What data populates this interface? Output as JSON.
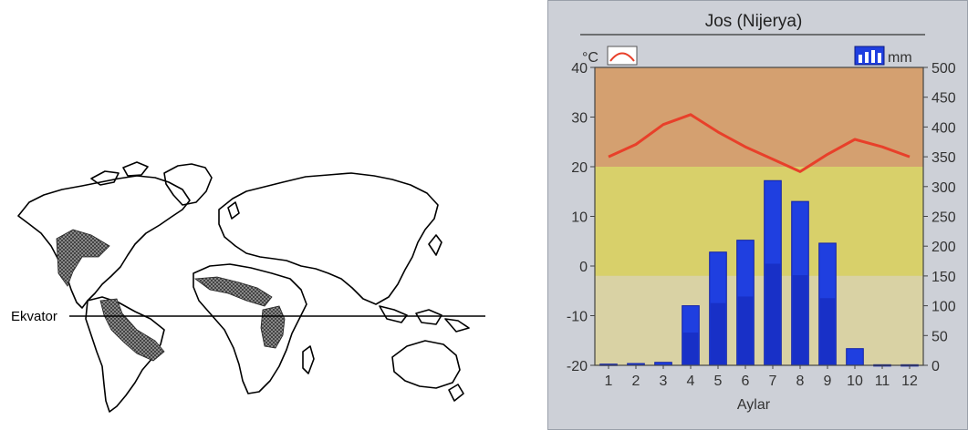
{
  "map": {
    "equator_label": "Ekvator"
  },
  "chart_data": {
    "type": "bar+line",
    "title": "Jos (Nijerya)",
    "xlabel": "Aylar",
    "left_unit": "°C",
    "right_unit": "mm",
    "categories": [
      "1",
      "2",
      "3",
      "4",
      "5",
      "6",
      "7",
      "8",
      "9",
      "10",
      "11",
      "12"
    ],
    "temp_ylim": [
      -20,
      40
    ],
    "temp_ticks": [
      40,
      30,
      20,
      10,
      0,
      -10,
      -20
    ],
    "precip_ylim": [
      0,
      500
    ],
    "precip_ticks": [
      500,
      450,
      400,
      350,
      300,
      250,
      200,
      150,
      100,
      50,
      0
    ],
    "series": [
      {
        "values": [
          22,
          24.5,
          28.5,
          30.5,
          27,
          24,
          21.5,
          19,
          22.5,
          25.5,
          24,
          22
        ]
      },
      {
        "values": [
          2,
          3,
          5,
          100,
          190,
          210,
          310,
          275,
          205,
          28,
          1,
          1
        ]
      }
    ],
    "grid": false,
    "legend_position": "top",
    "colors": {
      "temp_line": "#e8402a",
      "bars": "#1f3fe0",
      "bars_dark": "#1020a8",
      "band_hot": "#d4a070",
      "band_warm": "#d8d06a",
      "band_mild": "#d9d2a4",
      "frame_bg": "#c9ccd4"
    }
  }
}
